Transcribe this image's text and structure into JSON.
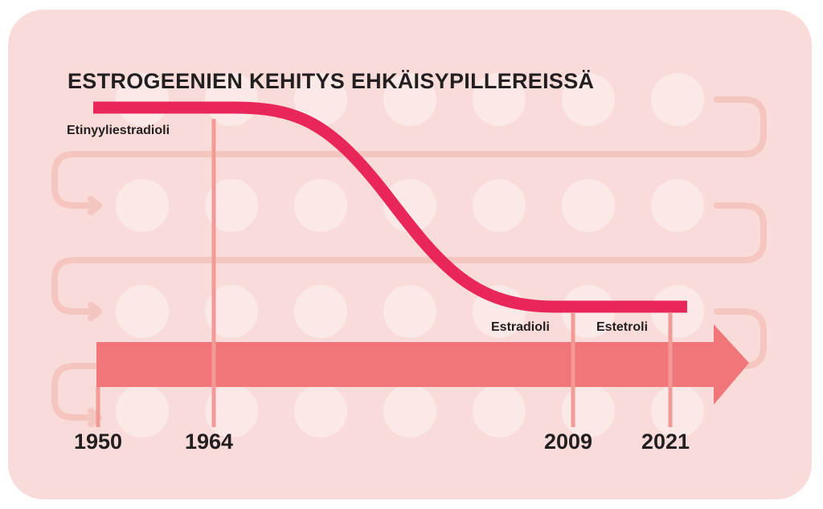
{
  "title": "ESTROGEENIEN KEHITYS EHKÄISYPILLEREISSÄ",
  "labels": {
    "etinyyliestradioli": "Etinyyliestradioli",
    "estradioli": "Estradioli",
    "estetroli": "Estetroli"
  },
  "years": [
    "1950",
    "1964",
    "2009",
    "2021"
  ],
  "colors": {
    "background": "#f9dcda",
    "pills": "#fbe9e8",
    "track": "#f5c5c0",
    "curve": "#e8265a",
    "arrow": "#f17679",
    "markers": "#f29a96",
    "text": "#231f20"
  }
}
